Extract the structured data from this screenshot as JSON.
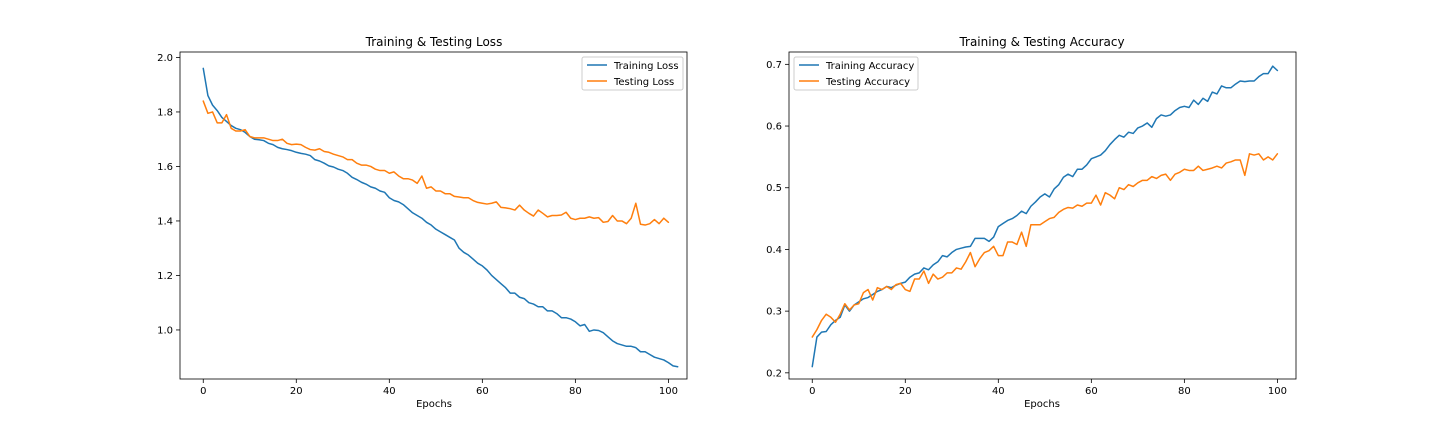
{
  "chart_data": [
    {
      "type": "line",
      "title": "Training & Testing Loss",
      "xlabel": "Epochs",
      "ylabel": "",
      "xlim": [
        -5,
        104
      ],
      "ylim": [
        0.82,
        2.02
      ],
      "xticks": [
        0,
        20,
        40,
        60,
        80,
        100
      ],
      "yticks": [
        1.0,
        1.2,
        1.4,
        1.6,
        1.8,
        2.0
      ],
      "grid": false,
      "legend": "top-right",
      "series": [
        {
          "name": "Training Loss",
          "color": "#1f77b4",
          "x_start": 0,
          "values": [
            1.96,
            1.86,
            1.825,
            1.805,
            1.78,
            1.765,
            1.75,
            1.74,
            1.735,
            1.725,
            1.71,
            1.7,
            1.698,
            1.695,
            1.685,
            1.68,
            1.67,
            1.665,
            1.662,
            1.658,
            1.652,
            1.648,
            1.645,
            1.64,
            1.625,
            1.62,
            1.612,
            1.602,
            1.598,
            1.59,
            1.585,
            1.575,
            1.56,
            1.552,
            1.542,
            1.535,
            1.525,
            1.52,
            1.51,
            1.505,
            1.485,
            1.475,
            1.47,
            1.46,
            1.445,
            1.43,
            1.42,
            1.41,
            1.395,
            1.385,
            1.37,
            1.36,
            1.35,
            1.34,
            1.33,
            1.3,
            1.285,
            1.275,
            1.26,
            1.245,
            1.235,
            1.22,
            1.2,
            1.185,
            1.17,
            1.155,
            1.135,
            1.135,
            1.12,
            1.115,
            1.1,
            1.095,
            1.085,
            1.085,
            1.07,
            1.07,
            1.06,
            1.045,
            1.045,
            1.04,
            1.03,
            1.015,
            1.02,
            0.995,
            1.0,
            0.998,
            0.99,
            0.975,
            0.96,
            0.95,
            0.945,
            0.94,
            0.94,
            0.935,
            0.92,
            0.92,
            0.91,
            0.9,
            0.895,
            0.89,
            0.88,
            0.868,
            0.865
          ]
        },
        {
          "name": "Testing Loss",
          "color": "#ff7f0e",
          "x_start": 0,
          "values": [
            1.84,
            1.795,
            1.8,
            1.76,
            1.76,
            1.79,
            1.74,
            1.73,
            1.73,
            1.735,
            1.71,
            1.705,
            1.705,
            1.705,
            1.7,
            1.695,
            1.695,
            1.7,
            1.685,
            1.68,
            1.682,
            1.68,
            1.67,
            1.662,
            1.66,
            1.665,
            1.655,
            1.652,
            1.645,
            1.64,
            1.635,
            1.625,
            1.625,
            1.612,
            1.605,
            1.605,
            1.6,
            1.59,
            1.585,
            1.585,
            1.575,
            1.58,
            1.565,
            1.555,
            1.555,
            1.55,
            1.538,
            1.565,
            1.52,
            1.525,
            1.51,
            1.51,
            1.5,
            1.5,
            1.49,
            1.488,
            1.485,
            1.485,
            1.475,
            1.468,
            1.465,
            1.462,
            1.465,
            1.47,
            1.45,
            1.448,
            1.445,
            1.44,
            1.458,
            1.44,
            1.428,
            1.418,
            1.44,
            1.428,
            1.415,
            1.42,
            1.42,
            1.422,
            1.432,
            1.41,
            1.405,
            1.41,
            1.41,
            1.415,
            1.41,
            1.412,
            1.395,
            1.398,
            1.42,
            1.4,
            1.4,
            1.39,
            1.41,
            1.465,
            1.388,
            1.385,
            1.39,
            1.405,
            1.39,
            1.41,
            1.395
          ]
        }
      ]
    },
    {
      "type": "line",
      "title": "Training & Testing Accuracy",
      "xlabel": "Epochs",
      "ylabel": "",
      "xlim": [
        -5,
        104
      ],
      "ylim": [
        0.19,
        0.72
      ],
      "xticks": [
        0,
        20,
        40,
        60,
        80,
        100
      ],
      "yticks": [
        0.2,
        0.3,
        0.4,
        0.5,
        0.6,
        0.7
      ],
      "grid": false,
      "legend": "top-left",
      "series": [
        {
          "name": "Training Accuracy",
          "color": "#1f77b4",
          "x_start": 0,
          "values": [
            0.21,
            0.258,
            0.266,
            0.267,
            0.278,
            0.285,
            0.29,
            0.31,
            0.3,
            0.31,
            0.315,
            0.32,
            0.322,
            0.327,
            0.332,
            0.335,
            0.34,
            0.338,
            0.342,
            0.345,
            0.347,
            0.355,
            0.36,
            0.362,
            0.37,
            0.367,
            0.375,
            0.38,
            0.39,
            0.388,
            0.395,
            0.4,
            0.402,
            0.404,
            0.405,
            0.418,
            0.418,
            0.418,
            0.413,
            0.42,
            0.437,
            0.442,
            0.447,
            0.45,
            0.455,
            0.462,
            0.458,
            0.47,
            0.477,
            0.485,
            0.49,
            0.485,
            0.498,
            0.505,
            0.517,
            0.522,
            0.518,
            0.53,
            0.53,
            0.537,
            0.547,
            0.55,
            0.553,
            0.56,
            0.57,
            0.578,
            0.585,
            0.582,
            0.59,
            0.588,
            0.597,
            0.6,
            0.605,
            0.598,
            0.612,
            0.618,
            0.616,
            0.618,
            0.625,
            0.63,
            0.632,
            0.63,
            0.642,
            0.635,
            0.645,
            0.64,
            0.655,
            0.652,
            0.665,
            0.662,
            0.662,
            0.668,
            0.673,
            0.672,
            0.673,
            0.673,
            0.68,
            0.685,
            0.685,
            0.697,
            0.69
          ]
        },
        {
          "name": "Testing Accuracy",
          "color": "#ff7f0e",
          "x_start": 0,
          "values": [
            0.258,
            0.27,
            0.285,
            0.295,
            0.29,
            0.282,
            0.295,
            0.312,
            0.302,
            0.31,
            0.312,
            0.33,
            0.335,
            0.318,
            0.338,
            0.335,
            0.34,
            0.335,
            0.343,
            0.345,
            0.335,
            0.332,
            0.352,
            0.352,
            0.365,
            0.345,
            0.36,
            0.352,
            0.355,
            0.362,
            0.362,
            0.37,
            0.368,
            0.38,
            0.395,
            0.372,
            0.385,
            0.395,
            0.398,
            0.405,
            0.39,
            0.39,
            0.412,
            0.412,
            0.408,
            0.428,
            0.405,
            0.44,
            0.44,
            0.44,
            0.445,
            0.45,
            0.452,
            0.46,
            0.465,
            0.468,
            0.467,
            0.472,
            0.47,
            0.475,
            0.475,
            0.488,
            0.472,
            0.492,
            0.488,
            0.482,
            0.5,
            0.497,
            0.505,
            0.502,
            0.508,
            0.512,
            0.512,
            0.518,
            0.515,
            0.52,
            0.522,
            0.512,
            0.522,
            0.525,
            0.53,
            0.528,
            0.528,
            0.535,
            0.528,
            0.53,
            0.532,
            0.535,
            0.532,
            0.54,
            0.542,
            0.545,
            0.545,
            0.52,
            0.555,
            0.553,
            0.555,
            0.545,
            0.55,
            0.545,
            0.555
          ]
        }
      ]
    }
  ]
}
